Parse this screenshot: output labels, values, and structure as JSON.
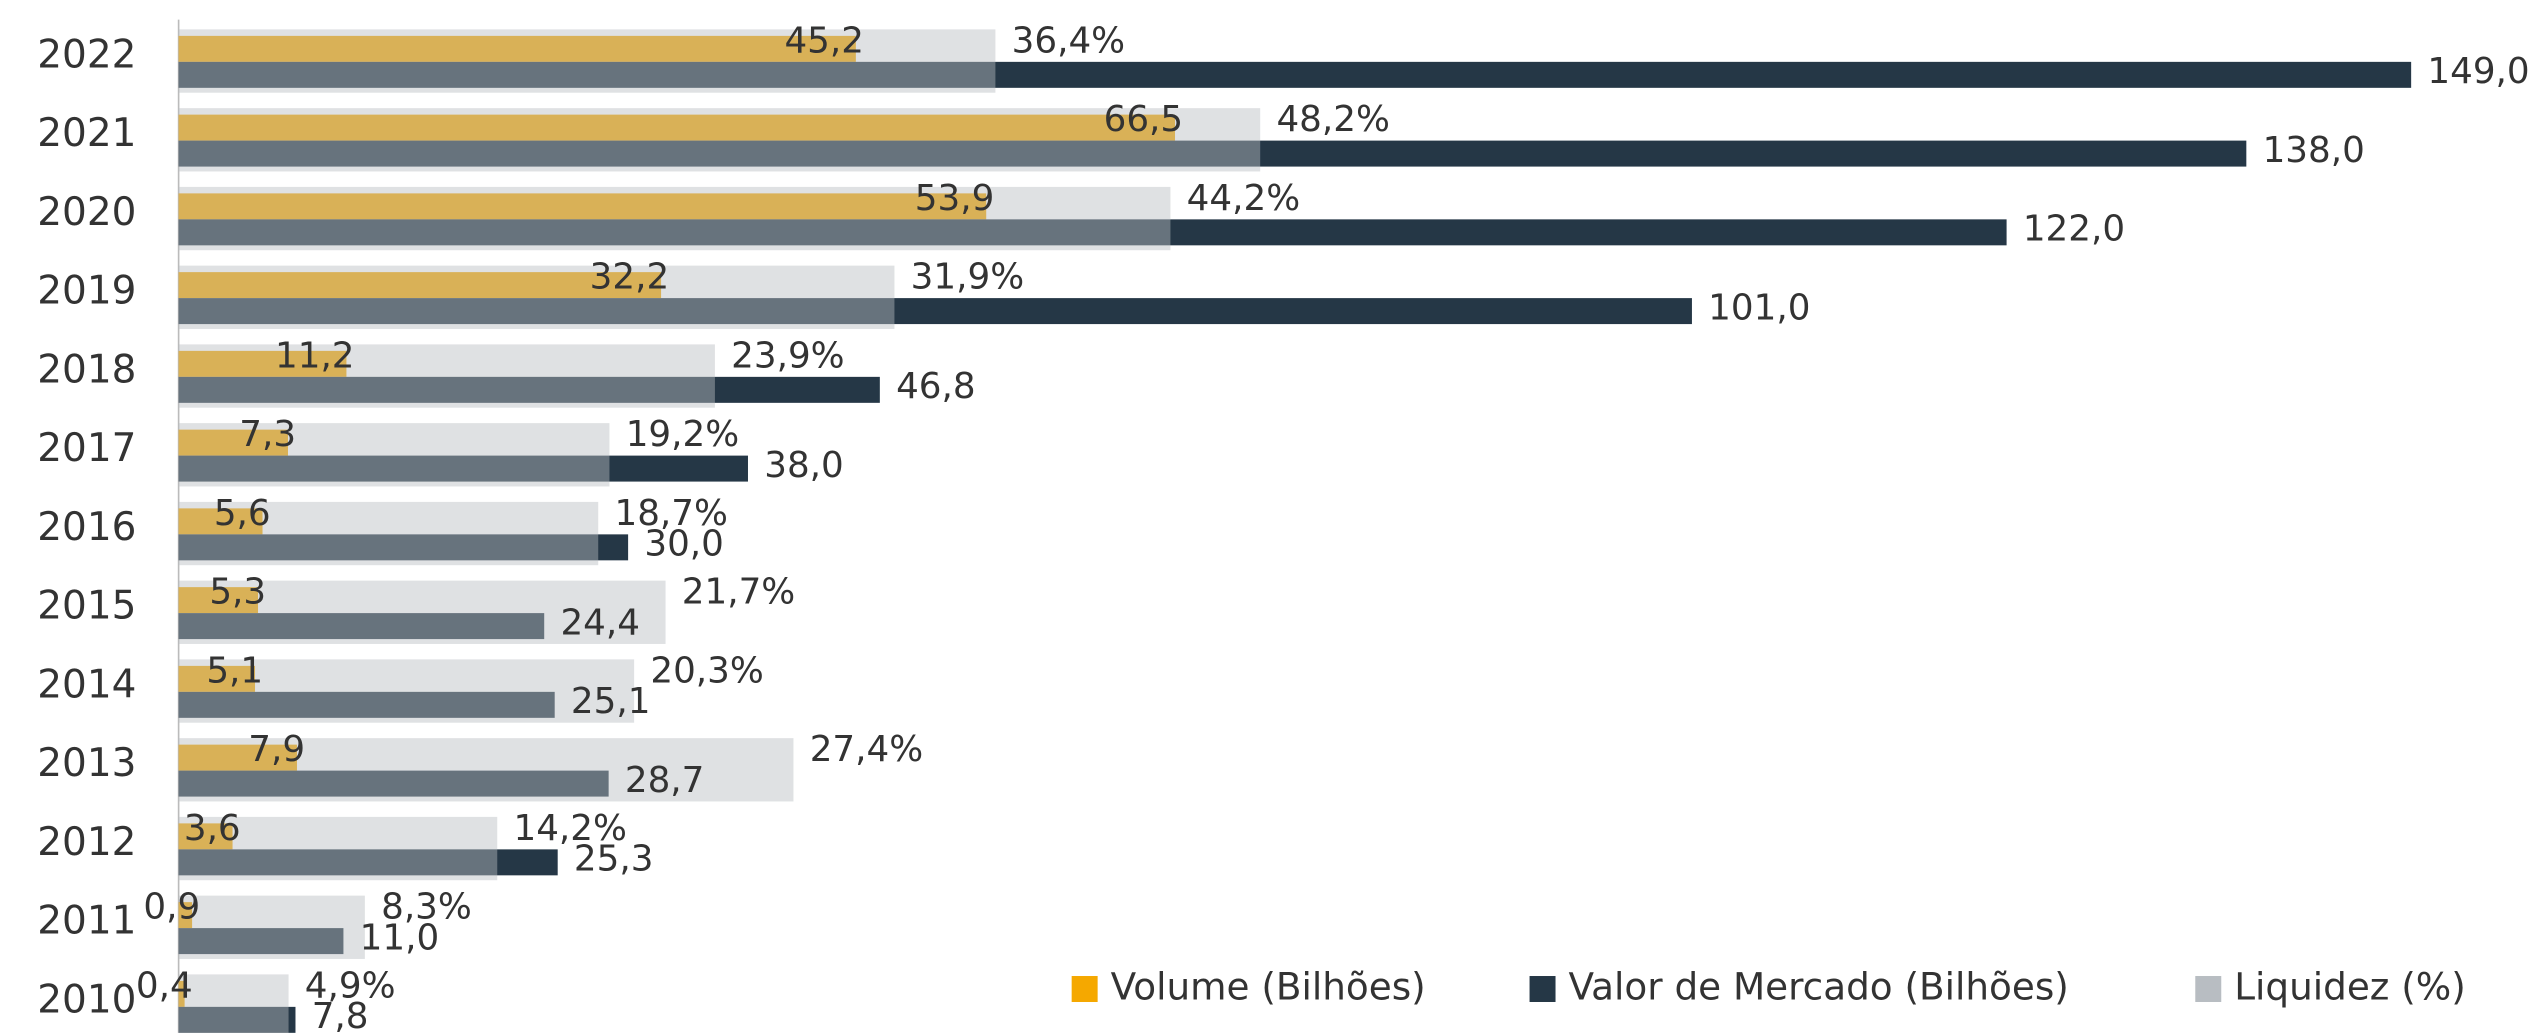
{
  "chart_data": {
    "type": "bar",
    "orientation": "horizontal",
    "categories": [
      "2022",
      "2021",
      "2020",
      "2019",
      "2018",
      "2017",
      "2016",
      "2015",
      "2014",
      "2013",
      "2012",
      "2011",
      "2010"
    ],
    "series": [
      {
        "name": "Volume (Bilhões)",
        "color": "#f5a800",
        "values": [
          45.2,
          66.5,
          53.9,
          32.2,
          11.2,
          7.3,
          5.6,
          5.3,
          5.1,
          7.9,
          3.6,
          0.9,
          0.4
        ],
        "value_labels": [
          "45,2",
          "66,5",
          "53,9",
          "32,2",
          "11,2",
          "7,3",
          "5,6",
          "5,3",
          "5,1",
          "7,9",
          "3,6",
          "0,9",
          "0,4"
        ]
      },
      {
        "name": "Valor de Mercado (Bilhões)",
        "color": "#253746",
        "values": [
          149.0,
          138.0,
          122.0,
          101.0,
          46.8,
          38.0,
          30.0,
          24.4,
          25.1,
          28.7,
          25.3,
          11.0,
          7.8
        ],
        "value_labels": [
          "149,0",
          "138,0",
          "122,0",
          "101,0",
          "46,8",
          "38,0",
          "30,0",
          "24,4",
          "25,1",
          "28,7",
          "25,3",
          "11,0",
          "7,8"
        ]
      },
      {
        "name": "Liquidez (%)",
        "color": "#b8bdc2",
        "axis": "x2",
        "values": [
          36.4,
          48.2,
          44.2,
          31.9,
          23.9,
          19.2,
          18.7,
          21.7,
          20.3,
          27.4,
          14.2,
          8.3,
          4.9
        ],
        "value_labels": [
          "36,4%",
          "48,2%",
          "44,2%",
          "31,9%",
          "23,9%",
          "19,2%",
          "18,7%",
          "21,7%",
          "20,3%",
          "27,4%",
          "14,2%",
          "8,3%",
          "4,9%"
        ]
      }
    ],
    "xlim": [
      0,
      158
    ],
    "x2lim": [
      0,
      105.5
    ],
    "legend": "bottom-right"
  }
}
